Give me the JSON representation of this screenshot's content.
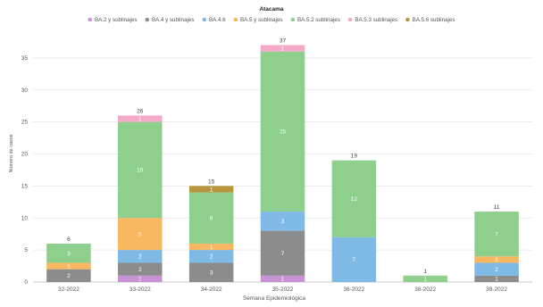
{
  "chart_data": {
    "type": "bar",
    "stacked": true,
    "title": "Atacama",
    "xlabel": "Semana Epidemiológica",
    "ylabel": "Número de casos",
    "ylim": [
      0,
      40
    ],
    "yticks": [
      0,
      5,
      10,
      15,
      20,
      25,
      30,
      35
    ],
    "grid": true,
    "legend_position": "top",
    "categories": [
      "32-2022",
      "33-2022",
      "34-2022",
      "35-2022",
      "36-2022",
      "38-2022",
      "39-2022"
    ],
    "totals": [
      6,
      26,
      15,
      37,
      19,
      1,
      11
    ],
    "series": [
      {
        "name": "BA.2 y sublinajes",
        "color": "#c992d6",
        "values": [
          0,
          1,
          0,
          1,
          0,
          0,
          0
        ]
      },
      {
        "name": "BA.4 y sublinajes",
        "color": "#8c8c8c",
        "values": [
          2,
          2,
          3,
          7,
          0,
          0,
          1
        ]
      },
      {
        "name": "BA.4.6",
        "color": "#7fb9e6",
        "values": [
          0,
          2,
          2,
          3,
          7,
          0,
          2
        ]
      },
      {
        "name": "BA.5 y sublinajes",
        "color": "#f8b760",
        "values": [
          1,
          5,
          1,
          0,
          0,
          0,
          1
        ]
      },
      {
        "name": "BA.5.2 sublinajes",
        "color": "#8ecf8e",
        "values": [
          3,
          15,
          8,
          25,
          12,
          1,
          7
        ]
      },
      {
        "name": "BA.5.3 sublinajes",
        "color": "#f4a9c8",
        "values": [
          0,
          1,
          0,
          1,
          0,
          0,
          0
        ]
      },
      {
        "name": "BA.5.6 sublinajes",
        "color": "#b8963d",
        "values": [
          0,
          0,
          1,
          0,
          0,
          0,
          0
        ]
      }
    ]
  }
}
